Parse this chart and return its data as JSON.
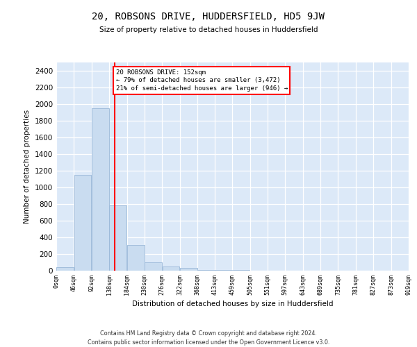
{
  "title": "20, ROBSONS DRIVE, HUDDERSFIELD, HD5 9JW",
  "subtitle": "Size of property relative to detached houses in Huddersfield",
  "xlabel": "Distribution of detached houses by size in Huddersfield",
  "ylabel": "Number of detached properties",
  "bar_edges": [
    0,
    46,
    92,
    138,
    184,
    230,
    276,
    322,
    368,
    413,
    459,
    505,
    551,
    597,
    643,
    689,
    735,
    781,
    827,
    873,
    919
  ],
  "bar_heights": [
    45,
    1150,
    1950,
    780,
    310,
    100,
    50,
    30,
    12,
    8,
    5,
    4,
    3,
    2,
    2,
    2,
    1,
    1,
    1,
    1
  ],
  "bar_color": "#c9dcf0",
  "bar_edge_color": "#9ab8d8",
  "vline_x": 152,
  "vline_color": "red",
  "annotation_line1": "20 ROBSONS DRIVE: 152sqm",
  "annotation_line2": "← 79% of detached houses are smaller (3,472)",
  "annotation_line3": "21% of semi-detached houses are larger (946) →",
  "annotation_box_color": "white",
  "annotation_box_edge_color": "red",
  "ylim": [
    0,
    2500
  ],
  "yticks": [
    0,
    200,
    400,
    600,
    800,
    1000,
    1200,
    1400,
    1600,
    1800,
    2000,
    2200,
    2400
  ],
  "xlim_min": 0,
  "xlim_max": 919,
  "background_color": "#dce9f8",
  "footer_line1": "Contains HM Land Registry data © Crown copyright and database right 2024.",
  "footer_line2": "Contains public sector information licensed under the Open Government Licence v3.0."
}
